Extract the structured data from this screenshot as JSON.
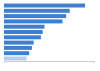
{
  "chart_data": {
    "type": "bar",
    "orientation": "horizontal",
    "categories": [
      null,
      null,
      null,
      null,
      null,
      null,
      null,
      null,
      null,
      null,
      null
    ],
    "values": [
      90,
      73,
      69,
      65,
      45,
      43,
      41,
      33,
      31,
      28,
      25
    ],
    "colors": [
      "#3f7fd0",
      "#3f7fd0",
      "#3f7fd0",
      "#3f7fd0",
      "#3f7fd0",
      "#3f7fd0",
      "#3f7fd0",
      "#3f7fd0",
      "#3f7fd0",
      "#3f7fd0",
      "#b7cdea"
    ],
    "ylim": [
      0,
      100
    ],
    "yticks": [],
    "tick_labels": false,
    "grid": false
  }
}
